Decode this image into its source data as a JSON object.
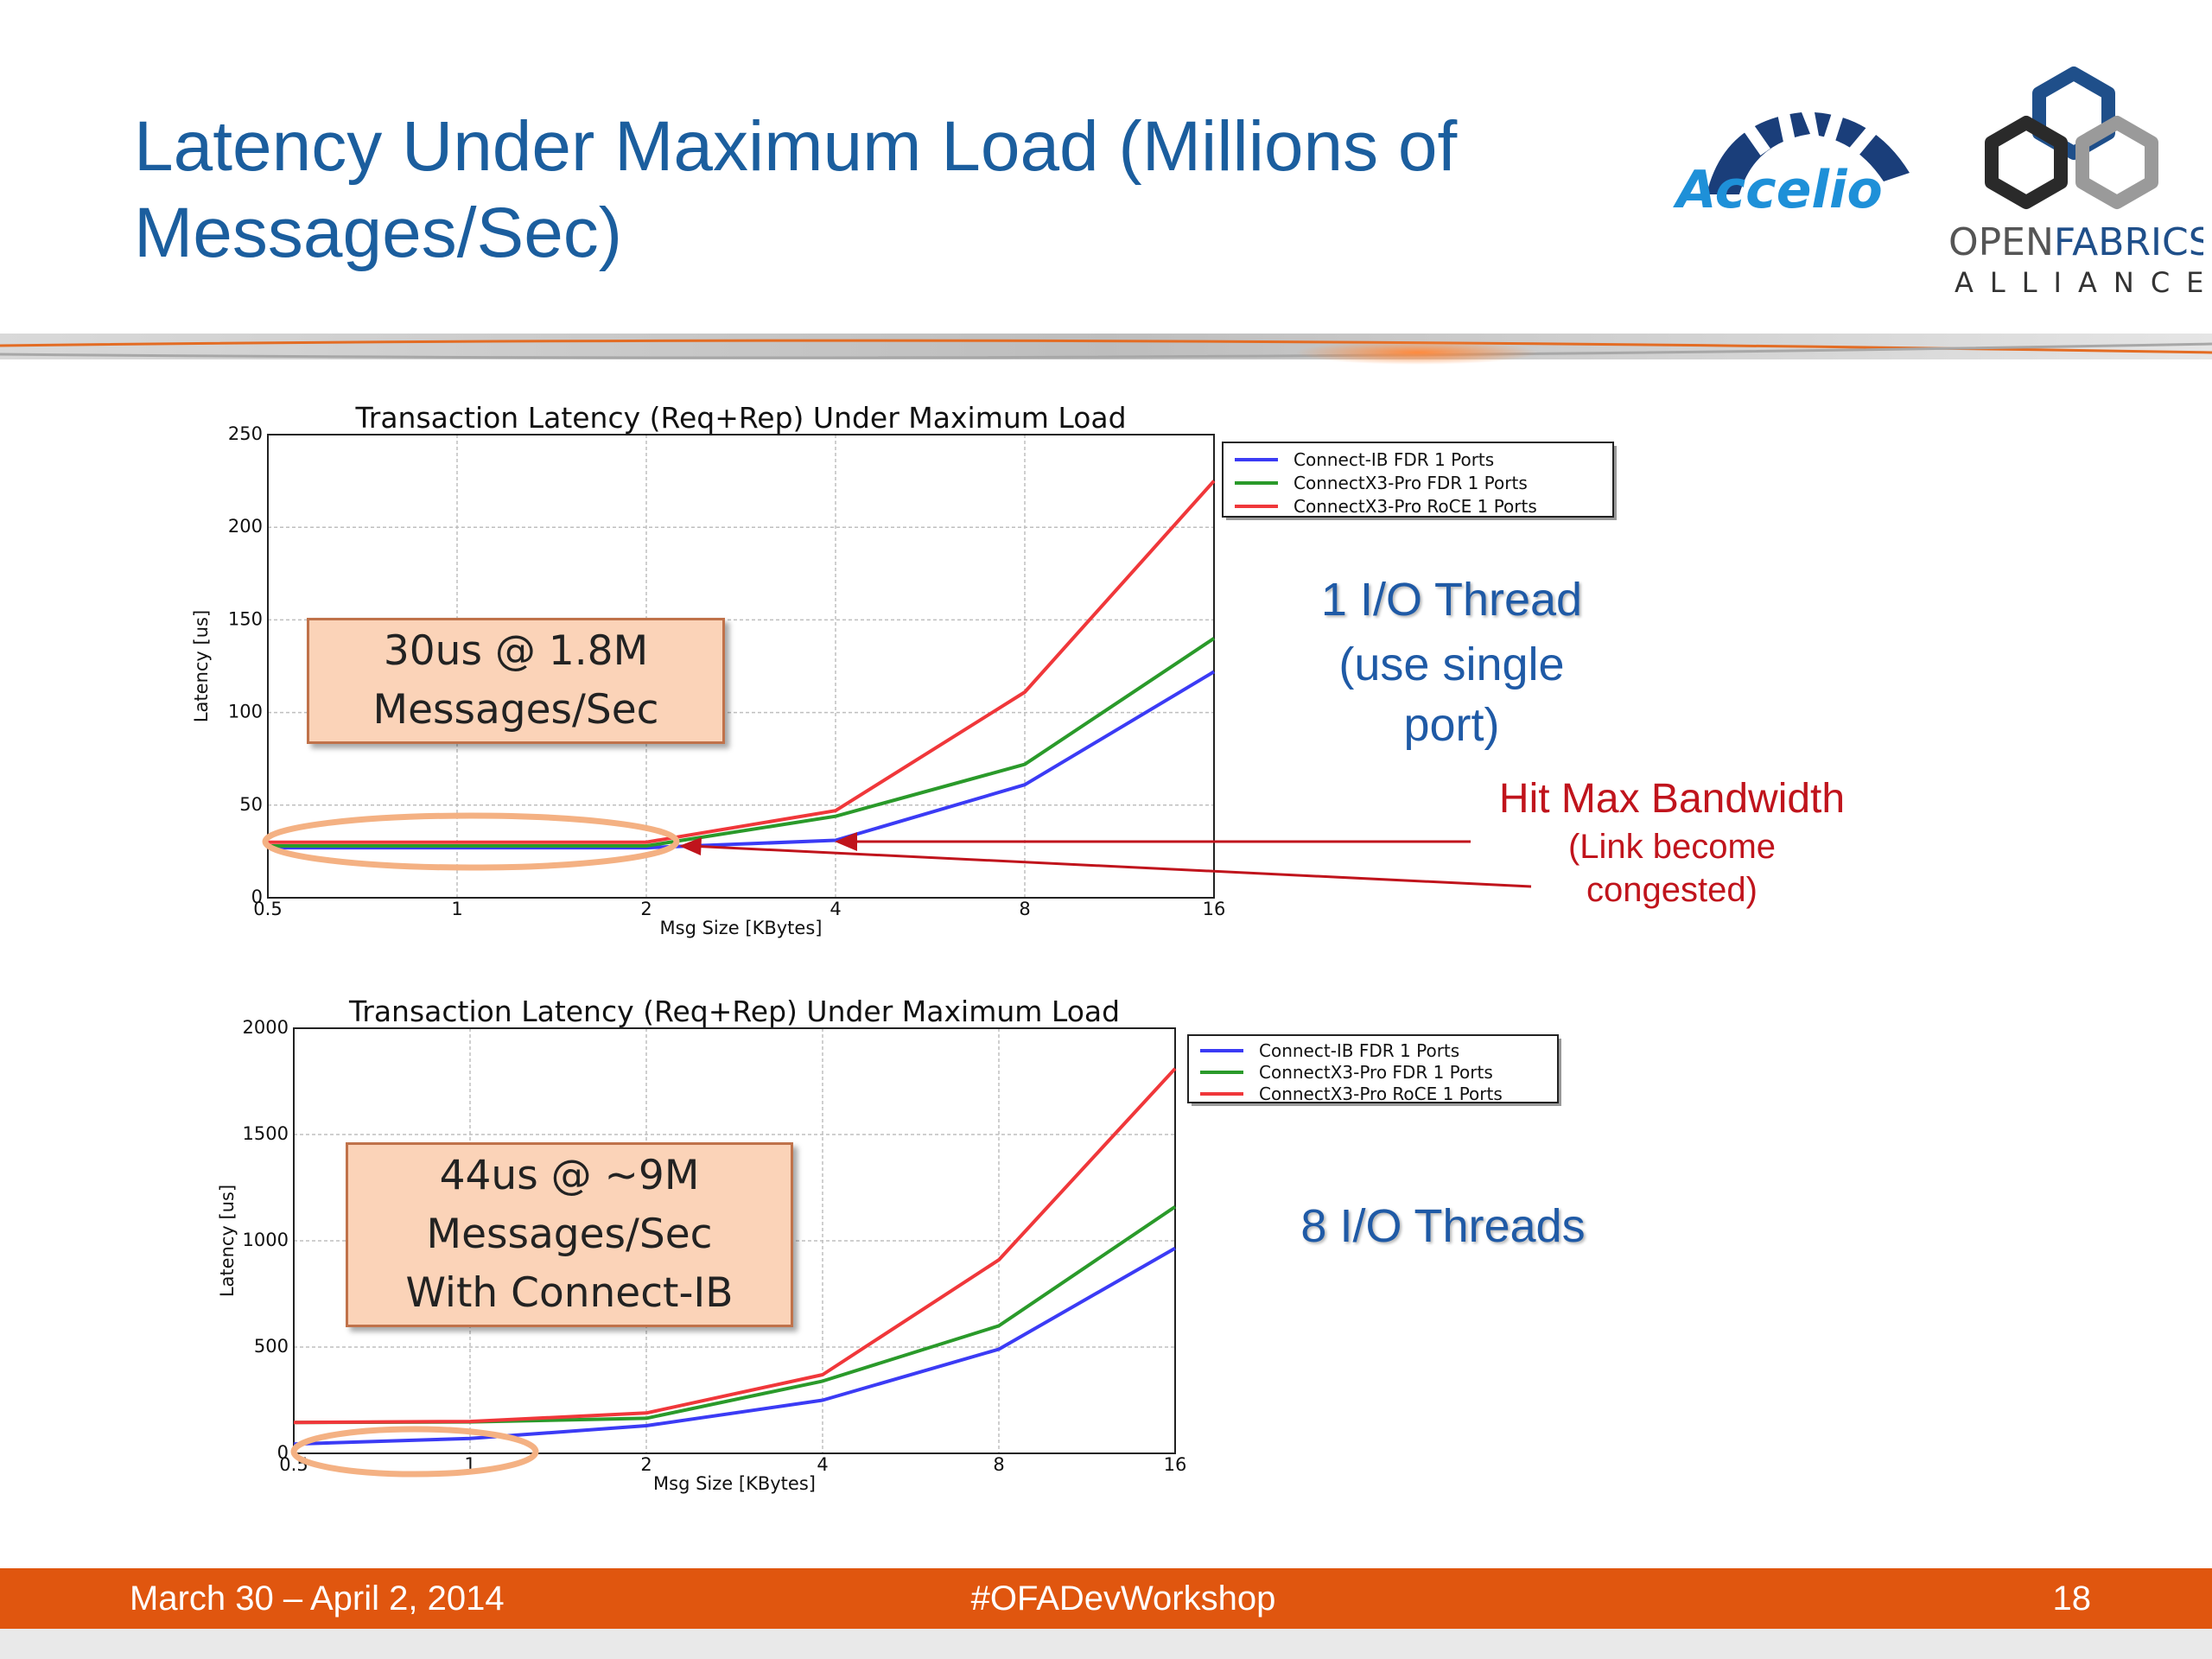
{
  "slide": {
    "title": "Latency Under Maximum Load (Millions of Messages/Sec)"
  },
  "logos": {
    "accelio": "Accelio",
    "ofa_line1_a": "OPEN",
    "ofa_line1_b": "FABRICS",
    "ofa_line2": "ALLIANCE"
  },
  "colors": {
    "title": "#1b5e9e",
    "footer": "#e0560f",
    "connect_ib": "#3b3bf5",
    "connectx3_fdr": "#2a9a2a",
    "connectx3_roce": "#f0373a",
    "callout_fill": "#fbd3b8",
    "ellipse": "#f4b183"
  },
  "annotations": {
    "thread1_title": "1 I/O Thread",
    "thread1_sub_1": "(use single",
    "thread1_sub_2": "port)",
    "hit_max": "Hit Max Bandwidth",
    "hit_max_sub_1": "(Link become",
    "hit_max_sub_2": "congested)",
    "thread8_title": "8 I/O Threads",
    "callout1_line1": "30us @ 1.8M",
    "callout1_line2": "Messages/Sec",
    "callout2_line1": "44us @ ~9M",
    "callout2_line2": "Messages/Sec",
    "callout2_line3": "With Connect-IB"
  },
  "footer": {
    "date": "March 30 – April 2, 2014",
    "tag": "#OFADevWorkshop",
    "page": "18"
  },
  "chart_data": [
    {
      "type": "line",
      "title": "Transaction Latency (Req+Rep) Under Maximum Load",
      "xlabel": "Msg Size [KBytes]",
      "ylabel": "Latency [us]",
      "x": [
        0.5,
        1,
        2,
        4,
        8,
        16
      ],
      "x_tick_labels": [
        "0.5",
        "1",
        "2",
        "4",
        "8",
        "16"
      ],
      "x_scale": "log2",
      "ylim": [
        0,
        250
      ],
      "y_ticks": [
        0,
        50,
        100,
        150,
        200,
        250
      ],
      "grid": true,
      "legend_position": "top-right",
      "series": [
        {
          "name": "Connect-IB FDR 1 Ports",
          "color": "#3b3bf5",
          "values": [
            27,
            27,
            27,
            31,
            61,
            122
          ]
        },
        {
          "name": "ConnectX3-Pro FDR 1 Ports",
          "color": "#2a9a2a",
          "values": [
            28,
            28,
            28,
            44,
            72,
            140
          ]
        },
        {
          "name": "ConnectX3-Pro RoCE 1 Ports",
          "color": "#f0373a",
          "values": [
            30,
            30,
            30,
            47,
            111,
            225
          ]
        }
      ]
    },
    {
      "type": "line",
      "title": "Transaction Latency (Req+Rep) Under Maximum Load",
      "xlabel": "Msg Size [KBytes]",
      "ylabel": "Latency [us]",
      "x": [
        0.5,
        1,
        2,
        4,
        8,
        16
      ],
      "x_tick_labels": [
        "0.5",
        "1",
        "2",
        "4",
        "8",
        "16"
      ],
      "x_scale": "log2",
      "ylim": [
        0,
        2000
      ],
      "y_ticks": [
        0,
        500,
        1000,
        1500,
        2000
      ],
      "grid": true,
      "legend_position": "top-right",
      "series": [
        {
          "name": "Connect-IB FDR 1 Ports",
          "color": "#3b3bf5",
          "values": [
            44,
            70,
            130,
            250,
            490,
            965
          ]
        },
        {
          "name": "ConnectX3-Pro FDR 1 Ports",
          "color": "#2a9a2a",
          "values": [
            145,
            148,
            165,
            340,
            600,
            1160
          ]
        },
        {
          "name": "ConnectX3-Pro RoCE 1 Ports",
          "color": "#f0373a",
          "values": [
            145,
            150,
            190,
            370,
            910,
            1810
          ]
        }
      ]
    }
  ]
}
